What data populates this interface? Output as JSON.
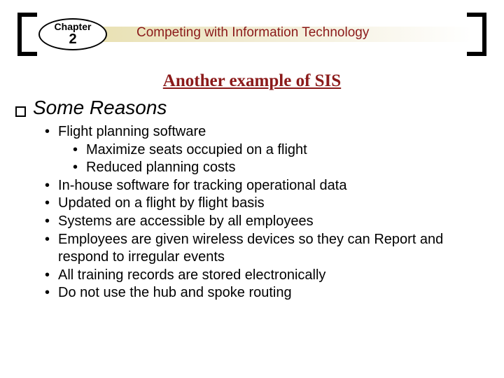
{
  "header": {
    "chapter_label": "Chapter",
    "chapter_number": "2",
    "title": "Competing with Information Technology"
  },
  "subtitle": "Another example of SIS",
  "section": {
    "heading": "Some Reasons",
    "items": [
      {
        "level": 1,
        "text": "Flight planning software"
      },
      {
        "level": 2,
        "text": "Maximize seats occupied on a flight"
      },
      {
        "level": 2,
        "text": "Reduced planning costs"
      },
      {
        "level": 1,
        "text": "In-house software for tracking operational data"
      },
      {
        "level": 1,
        "text": "Updated on a flight by flight basis"
      },
      {
        "level": 1,
        "text": "Systems are accessible by all employees"
      },
      {
        "level": 1,
        "text": "Employees are given wireless devices so they can Report and respond to irregular events"
      },
      {
        "level": 1,
        "text": "All training records are stored electronically"
      },
      {
        "level": 1,
        "text": "Do not use the hub and spoke routing"
      }
    ]
  },
  "colors": {
    "accent": "#8b1a1a",
    "gradient_start": "#e8e0b0",
    "background": "#ffffff"
  }
}
